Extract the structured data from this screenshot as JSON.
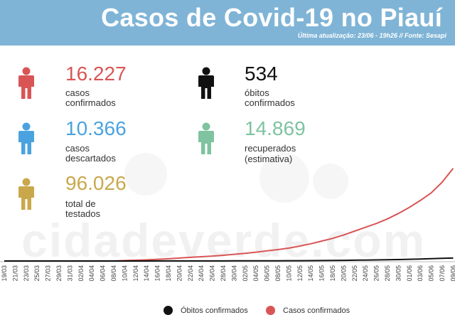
{
  "header": {
    "title": "Casos de Covid-19 no Piauí",
    "subtitle": "Última atualização: 23/06 - 19h26 // Fonte: Sesapi"
  },
  "watermark": "cidadeverde.com",
  "stats": {
    "confirmed": {
      "value": "16.227",
      "label": "casos confirmados",
      "color": "#d95555",
      "icon": "person-icon"
    },
    "deaths": {
      "value": "534",
      "label": "óbitos confirmados",
      "color": "#111111",
      "icon": "person-icon"
    },
    "discarded": {
      "value": "10.366",
      "label": "casos descartados",
      "color": "#4aa3df",
      "icon": "person-icon"
    },
    "recovered": {
      "value": "14.869",
      "label": "recuperados",
      "label2": "(estimativa)",
      "color": "#7fc3a0",
      "icon": "person-icon"
    },
    "tested": {
      "value": "96.026",
      "label": "total de testados",
      "color": "#c9a84c",
      "icon": "person-icon"
    }
  },
  "chart_data": {
    "type": "line",
    "x": [
      "19/03",
      "21/03",
      "23/03",
      "25/03",
      "27/03",
      "29/03",
      "31/03",
      "02/04",
      "04/04",
      "06/04",
      "08/04",
      "10/04",
      "12/04",
      "14/04",
      "16/04",
      "18/04",
      "20/04",
      "22/04",
      "24/04",
      "26/04",
      "28/04",
      "30/04",
      "02/05",
      "04/05",
      "06/05",
      "08/05",
      "10/05",
      "12/05",
      "14/05",
      "16/05",
      "18/05",
      "20/05",
      "22/05",
      "24/05",
      "26/05",
      "28/05",
      "30/05",
      "01/06",
      "03/06",
      "05/06",
      "07/06",
      "09/06"
    ],
    "series": [
      {
        "name": "Óbitos confirmados",
        "color": "#111111",
        "values": [
          0,
          0,
          0,
          0,
          0,
          0,
          0,
          0,
          0,
          0,
          0,
          2,
          3,
          4,
          5,
          6,
          7,
          8,
          9,
          11,
          12,
          14,
          16,
          19,
          22,
          27,
          33,
          40,
          48,
          58,
          70,
          85,
          100,
          120,
          140,
          160,
          185,
          220,
          260,
          300,
          340,
          380
        ]
      },
      {
        "name": "Casos confirmados",
        "color": "#d95555",
        "values": [
          0,
          0,
          0,
          0,
          0,
          0,
          0,
          0,
          0,
          0,
          0,
          60,
          100,
          150,
          220,
          290,
          380,
          470,
          560,
          640,
          740,
          870,
          1000,
          1150,
          1320,
          1490,
          1680,
          1950,
          2250,
          2600,
          2950,
          3400,
          3900,
          4400,
          4900,
          5500,
          6200,
          7000,
          7900,
          8900,
          10300,
          12100
        ]
      }
    ],
    "ylim": [
      0,
      13000
    ],
    "legend": "bottom-center"
  }
}
